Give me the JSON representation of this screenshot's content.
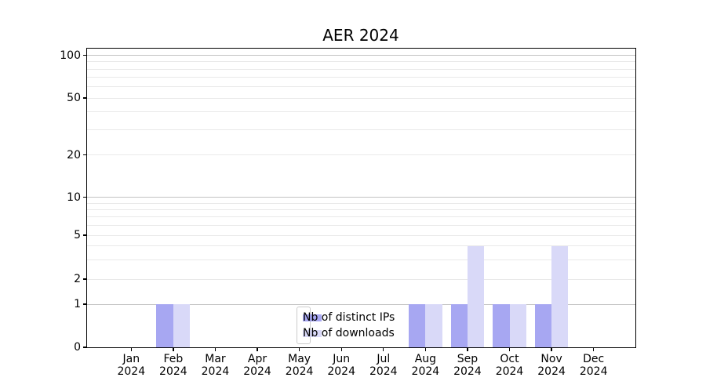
{
  "chart_data": {
    "type": "bar",
    "title": "AER 2024",
    "x_tick_month_labels": [
      "Jan",
      "Feb",
      "Mar",
      "Apr",
      "May",
      "Jun",
      "Jul",
      "Aug",
      "Sep",
      "Oct",
      "Nov",
      "Dec"
    ],
    "x_tick_year_label": "2024",
    "categories": [
      "Jan 2024",
      "Feb 2024",
      "Mar 2024",
      "Apr 2024",
      "May 2024",
      "Jun 2024",
      "Jul 2024",
      "Aug 2024",
      "Sep 2024",
      "Oct 2024",
      "Nov 2024",
      "Dec 2024"
    ],
    "series": [
      {
        "name": "Nb of distinct IPs",
        "color": "#a7a7f2",
        "values": [
          0,
          1,
          0,
          0,
          0,
          0,
          0,
          1,
          1,
          1,
          1,
          0
        ]
      },
      {
        "name": "Nb of downloads",
        "color": "#d9d9f8",
        "values": [
          0,
          1,
          0,
          0,
          0,
          0,
          0,
          1,
          4,
          1,
          4,
          0
        ]
      }
    ],
    "y_axis": {
      "scale": "pseudo-log",
      "tick_labels": [
        0,
        1,
        2,
        5,
        10,
        20,
        50,
        100
      ],
      "minor_gridlines": [
        3,
        4,
        6,
        7,
        8,
        9,
        30,
        40,
        60,
        70,
        80,
        90
      ],
      "ylim": [
        0,
        100
      ]
    },
    "legend": {
      "position": "bottom-center",
      "entries": [
        "Nb of distinct IPs",
        "Nb of downloads"
      ]
    },
    "grid": true,
    "colors": {
      "major_gridline": "#c2c2c2",
      "minor_gridline": "#e9e9e9",
      "axis": "#000000",
      "background": "#ffffff"
    }
  }
}
